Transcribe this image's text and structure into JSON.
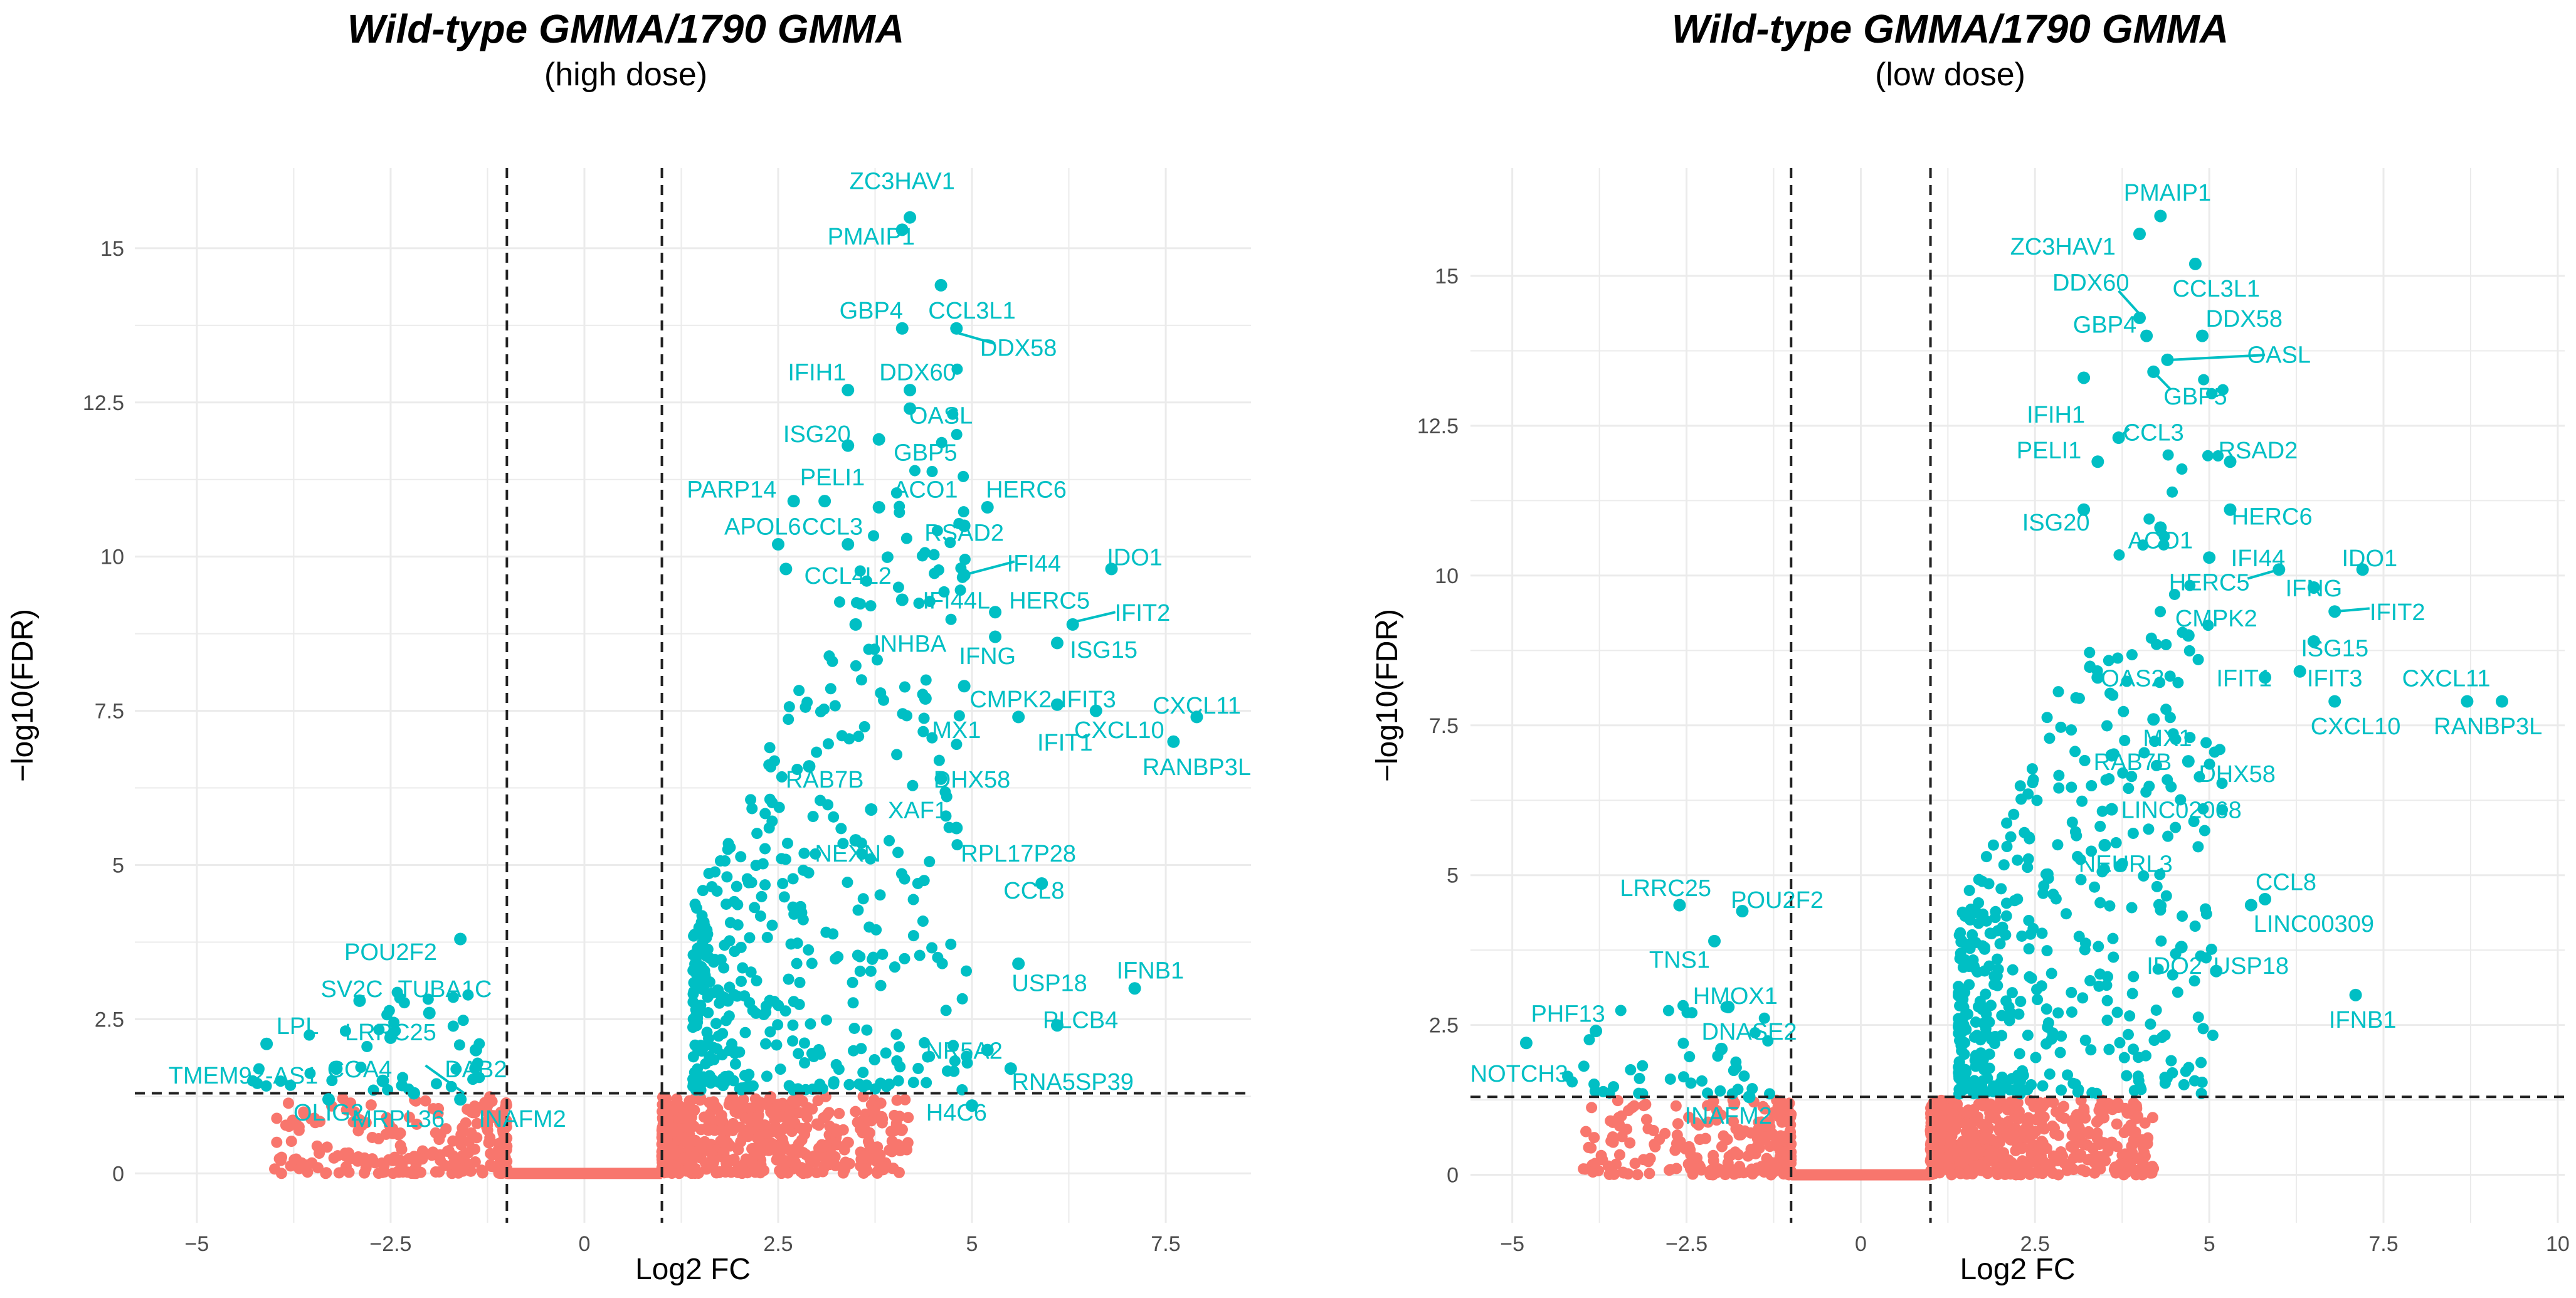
{
  "figure": {
    "background": "#ffffff",
    "up_color": "#00BFC4",
    "ns_color": "#F8766D",
    "grid_color": "#EBEBEB",
    "tick_label_color": "#4D4D4D"
  },
  "chart_data": [
    {
      "type": "scatter",
      "subtype": "volcano",
      "title": "Wild-type GMMA/1790 GMMA",
      "subtitle": "(high dose)",
      "xlabel": "Log2 FC",
      "ylabel": "−log10(FDR)",
      "xlim": [
        -5.8,
        8.6
      ],
      "ylim": [
        -0.8,
        16.3
      ],
      "xticks": [
        -5,
        -2.5,
        0,
        2.5,
        5,
        7.5
      ],
      "xtick_labels": [
        "−5",
        "−2.5",
        "0",
        "2.5",
        "5",
        "7.5"
      ],
      "yticks": [
        0,
        2.5,
        5,
        7.5,
        10,
        12.5,
        15
      ],
      "ytick_labels": [
        "0",
        "2.5",
        "5",
        "7.5",
        "10",
        "12.5",
        "15"
      ],
      "fc_threshold": [
        -1,
        1
      ],
      "fdr_threshold": 1.3,
      "labeled_points": [
        {
          "gene": "ZC3HAV1",
          "x": 4.2,
          "y": 15.5,
          "lx": 4.1,
          "ly": 16.1
        },
        {
          "gene": "PMAIP1",
          "x": 4.1,
          "y": 15.3,
          "lx": 3.7,
          "ly": 15.2
        },
        {
          "gene": "GBP4",
          "x": 4.1,
          "y": 13.7,
          "lx": 3.7,
          "ly": 14.0
        },
        {
          "gene": "CCL3L1",
          "x": 4.6,
          "y": 14.4,
          "lx": 5.0,
          "ly": 14.0
        },
        {
          "gene": "DDX58",
          "x": 4.8,
          "y": 13.7,
          "lx": 5.6,
          "ly": 13.4
        },
        {
          "gene": "IFIH1",
          "x": 3.4,
          "y": 12.7,
          "lx": 3.0,
          "ly": 13.0
        },
        {
          "gene": "DDX60",
          "x": 4.2,
          "y": 12.7,
          "lx": 4.3,
          "ly": 13.0
        },
        {
          "gene": "OASL",
          "x": 4.2,
          "y": 12.4,
          "lx": 4.6,
          "ly": 12.3
        },
        {
          "gene": "ISG20",
          "x": 3.4,
          "y": 11.8,
          "lx": 3.0,
          "ly": 12.0
        },
        {
          "gene": "GBP5",
          "x": 3.8,
          "y": 11.9,
          "lx": 4.4,
          "ly": 11.7
        },
        {
          "gene": "PARP14",
          "x": 2.7,
          "y": 10.9,
          "lx": 1.9,
          "ly": 11.1
        },
        {
          "gene": "PELI1",
          "x": 3.1,
          "y": 10.9,
          "lx": 3.2,
          "ly": 11.3
        },
        {
          "gene": "ACO1",
          "x": 3.8,
          "y": 10.8,
          "lx": 4.4,
          "ly": 11.1
        },
        {
          "gene": "HERC6",
          "x": 5.2,
          "y": 10.8,
          "lx": 5.7,
          "ly": 11.1
        },
        {
          "gene": "APOL6",
          "x": 2.5,
          "y": 10.2,
          "lx": 2.3,
          "ly": 10.5
        },
        {
          "gene": "CCL3",
          "x": 3.4,
          "y": 10.2,
          "lx": 3.2,
          "ly": 10.5
        },
        {
          "gene": "RSAD2",
          "x": 4.9,
          "y": 10.5,
          "lx": 4.9,
          "ly": 10.4
        },
        {
          "gene": "CCL4L2",
          "x": 2.6,
          "y": 9.8,
          "lx": 3.4,
          "ly": 9.7
        },
        {
          "gene": "IFI44",
          "x": 4.9,
          "y": 9.7,
          "lx": 5.8,
          "ly": 9.9
        },
        {
          "gene": "IDO1",
          "x": 6.8,
          "y": 9.8,
          "lx": 7.1,
          "ly": 10.0
        },
        {
          "gene": "IFI44L",
          "x": 4.1,
          "y": 9.3,
          "lx": 4.8,
          "ly": 9.3
        },
        {
          "gene": "HERC5",
          "x": 5.3,
          "y": 9.1,
          "lx": 6.0,
          "ly": 9.3
        },
        {
          "gene": "IFIT2",
          "x": 6.3,
          "y": 8.9,
          "lx": 7.2,
          "ly": 9.1
        },
        {
          "gene": "INHBA",
          "x": 3.5,
          "y": 8.9,
          "lx": 4.2,
          "ly": 8.6
        },
        {
          "gene": "IFNG",
          "x": 5.3,
          "y": 8.7,
          "lx": 5.2,
          "ly": 8.4
        },
        {
          "gene": "ISG15",
          "x": 6.1,
          "y": 8.6,
          "lx": 6.7,
          "ly": 8.5
        },
        {
          "gene": "CMPK2",
          "x": 4.9,
          "y": 7.9,
          "lx": 5.5,
          "ly": 7.7
        },
        {
          "gene": "IFIT3",
          "x": 6.1,
          "y": 7.6,
          "lx": 6.5,
          "ly": 7.7
        },
        {
          "gene": "CXCL11",
          "x": 7.9,
          "y": 7.4,
          "lx": 7.9,
          "ly": 7.6
        },
        {
          "gene": "MX1",
          "x": 4.4,
          "y": 7.7,
          "lx": 4.8,
          "ly": 7.2
        },
        {
          "gene": "IFIT1",
          "x": 5.6,
          "y": 7.4,
          "lx": 6.2,
          "ly": 7.0
        },
        {
          "gene": "CXCL10",
          "x": 6.6,
          "y": 7.5,
          "lx": 6.9,
          "ly": 7.2
        },
        {
          "gene": "RANBP3L",
          "x": 7.6,
          "y": 7.0,
          "lx": 7.9,
          "ly": 6.6
        },
        {
          "gene": "RAB7B",
          "x": 2.9,
          "y": 6.6,
          "lx": 3.1,
          "ly": 6.4
        },
        {
          "gene": "DHX58",
          "x": 4.6,
          "y": 6.4,
          "lx": 5.0,
          "ly": 6.4
        },
        {
          "gene": "XAF1",
          "x": 3.7,
          "y": 5.9,
          "lx": 4.3,
          "ly": 5.9
        },
        {
          "gene": "NEXN",
          "x": 3.5,
          "y": 5.4,
          "lx": 3.4,
          "ly": 5.2
        },
        {
          "gene": "RPL17P28",
          "x": 4.8,
          "y": 5.6,
          "lx": 5.6,
          "ly": 5.2
        },
        {
          "gene": "CCL8",
          "x": 5.9,
          "y": 4.7,
          "lx": 5.8,
          "ly": 4.6
        },
        {
          "gene": "IFNB1",
          "x": 7.1,
          "y": 3.0,
          "lx": 7.3,
          "ly": 3.3
        },
        {
          "gene": "USP18",
          "x": 5.6,
          "y": 3.4,
          "lx": 6.0,
          "ly": 3.1
        },
        {
          "gene": "PLCB4",
          "x": 6.1,
          "y": 2.4,
          "lx": 6.4,
          "ly": 2.5
        },
        {
          "gene": "NR5A2",
          "x": 5.2,
          "y": 2.0,
          "lx": 4.9,
          "ly": 2.0
        },
        {
          "gene": "RNA5SP39",
          "x": 5.5,
          "y": 1.7,
          "lx": 6.3,
          "ly": 1.5
        },
        {
          "gene": "H4C6",
          "x": 5.0,
          "y": 1.1,
          "lx": 4.8,
          "ly": 1.0
        },
        {
          "gene": "POU2F2",
          "x": -1.6,
          "y": 3.8,
          "lx": -2.5,
          "ly": 3.6
        },
        {
          "gene": "SV2C",
          "x": -2.9,
          "y": 2.8,
          "lx": -3.0,
          "ly": 3.0
        },
        {
          "gene": "TUBA1C",
          "x": -2.0,
          "y": 2.6,
          "lx": -1.8,
          "ly": 3.0
        },
        {
          "gene": "LPL",
          "x": -4.1,
          "y": 2.1,
          "lx": -3.7,
          "ly": 2.4
        },
        {
          "gene": "LRRC25",
          "x": -2.5,
          "y": 2.2,
          "lx": -2.5,
          "ly": 2.3
        },
        {
          "gene": "TMEM92-AS1",
          "x": -3.2,
          "y": 1.7,
          "lx": -4.4,
          "ly": 1.6
        },
        {
          "gene": "COA4",
          "x": -2.6,
          "y": 1.5,
          "lx": -2.9,
          "ly": 1.7
        },
        {
          "gene": "DAB2",
          "x": -1.4,
          "y": 2.0,
          "lx": -1.4,
          "ly": 1.7
        },
        {
          "gene": "OLIG2",
          "x": -3.3,
          "y": 1.2,
          "lx": -3.3,
          "ly": 1.0
        },
        {
          "gene": "MRPL36",
          "x": -2.2,
          "y": 1.3,
          "lx": -2.4,
          "ly": 0.9
        },
        {
          "gene": "INAFM2",
          "x": -1.6,
          "y": 1.2,
          "lx": -0.8,
          "ly": 0.9
        }
      ],
      "leader_lines": [
        {
          "x1": 4.75,
          "y1": 13.65,
          "x2": 5.3,
          "y2": 13.45
        },
        {
          "x1": 4.95,
          "y1": 9.72,
          "x2": 5.55,
          "y2": 9.92
        },
        {
          "x1": 6.35,
          "y1": 8.95,
          "x2": 6.85,
          "y2": 9.1
        },
        {
          "x1": -1.55,
          "y1": 1.3,
          "x2": -2.05,
          "y2": 1.75
        }
      ]
    },
    {
      "type": "scatter",
      "subtype": "volcano",
      "title": "Wild-type GMMA/1790 GMMA",
      "subtitle": "(low dose)",
      "xlabel": "Log2 FC",
      "ylabel": "−log10(FDR)",
      "xlim": [
        -5.6,
        10.1
      ],
      "ylim": [
        -0.8,
        16.8
      ],
      "xticks": [
        -5,
        -2.5,
        0,
        2.5,
        5,
        7.5,
        10
      ],
      "xtick_labels": [
        "−5",
        "−2.5",
        "0",
        "2.5",
        "5",
        "7.5",
        "10"
      ],
      "yticks": [
        0,
        2.5,
        5,
        7.5,
        10,
        12.5,
        15
      ],
      "ytick_labels": [
        "0",
        "2.5",
        "5",
        "7.5",
        "10",
        "12.5",
        "15"
      ],
      "fc_threshold": [
        -1,
        1
      ],
      "fdr_threshold": 1.3,
      "labeled_points": [
        {
          "gene": "PMAIP1",
          "x": 4.3,
          "y": 16.0,
          "lx": 4.4,
          "ly": 16.4
        },
        {
          "gene": "ZC3HAV1",
          "x": 4.0,
          "y": 15.7,
          "lx": 2.9,
          "ly": 15.5
        },
        {
          "gene": "DDX60",
          "x": 4.0,
          "y": 14.3,
          "lx": 3.3,
          "ly": 14.9
        },
        {
          "gene": "CCL3L1",
          "x": 4.8,
          "y": 15.2,
          "lx": 5.1,
          "ly": 14.8
        },
        {
          "gene": "GBP4",
          "x": 4.1,
          "y": 14.0,
          "lx": 3.5,
          "ly": 14.2
        },
        {
          "gene": "DDX58",
          "x": 4.9,
          "y": 14.0,
          "lx": 5.5,
          "ly": 14.3
        },
        {
          "gene": "OASL",
          "x": 4.4,
          "y": 13.6,
          "lx": 6.0,
          "ly": 13.7
        },
        {
          "gene": "GBP5",
          "x": 4.2,
          "y": 13.4,
          "lx": 4.8,
          "ly": 13.0
        },
        {
          "gene": "IFIH1",
          "x": 3.2,
          "y": 13.3,
          "lx": 2.8,
          "ly": 12.7
        },
        {
          "gene": "CCL3",
          "x": 3.7,
          "y": 12.3,
          "lx": 4.2,
          "ly": 12.4
        },
        {
          "gene": "PELI1",
          "x": 3.4,
          "y": 11.9,
          "lx": 2.7,
          "ly": 12.1
        },
        {
          "gene": "RSAD2",
          "x": 5.3,
          "y": 11.9,
          "lx": 5.7,
          "ly": 12.1
        },
        {
          "gene": "ISG20",
          "x": 3.2,
          "y": 11.1,
          "lx": 2.8,
          "ly": 10.9
        },
        {
          "gene": "HERC6",
          "x": 5.3,
          "y": 11.1,
          "lx": 5.9,
          "ly": 11.0
        },
        {
          "gene": "ACO1",
          "x": 4.3,
          "y": 10.8,
          "lx": 4.3,
          "ly": 10.6
        },
        {
          "gene": "IFI44",
          "x": 5.0,
          "y": 10.3,
          "lx": 5.7,
          "ly": 10.3
        },
        {
          "gene": "IDO1",
          "x": 7.2,
          "y": 10.1,
          "lx": 7.3,
          "ly": 10.3
        },
        {
          "gene": "HERC5",
          "x": 6.0,
          "y": 10.1,
          "lx": 5.0,
          "ly": 9.9
        },
        {
          "gene": "IFNG",
          "x": 6.5,
          "y": 9.8,
          "lx": 6.5,
          "ly": 9.8
        },
        {
          "gene": "IFIT2",
          "x": 6.8,
          "y": 9.4,
          "lx": 7.7,
          "ly": 9.4
        },
        {
          "gene": "CMPK2",
          "x": 4.7,
          "y": 9.0,
          "lx": 5.1,
          "ly": 9.3
        },
        {
          "gene": "ISG15",
          "x": 6.5,
          "y": 8.9,
          "lx": 6.8,
          "ly": 8.8
        },
        {
          "gene": "OAS2",
          "x": 3.4,
          "y": 8.3,
          "lx": 3.9,
          "ly": 8.3
        },
        {
          "gene": "IFIT1",
          "x": 5.8,
          "y": 8.3,
          "lx": 5.5,
          "ly": 8.3
        },
        {
          "gene": "IFIT3",
          "x": 6.3,
          "y": 8.4,
          "lx": 6.8,
          "ly": 8.3
        },
        {
          "gene": "CXCL11",
          "x": 9.2,
          "y": 7.9,
          "lx": 8.4,
          "ly": 8.3
        },
        {
          "gene": "MX1",
          "x": 4.2,
          "y": 7.6,
          "lx": 4.4,
          "ly": 7.3
        },
        {
          "gene": "CXCL10",
          "x": 6.8,
          "y": 7.9,
          "lx": 7.1,
          "ly": 7.5
        },
        {
          "gene": "RANBP3L",
          "x": 8.7,
          "y": 7.9,
          "lx": 9.0,
          "ly": 7.5
        },
        {
          "gene": "RAB7B",
          "x": 3.6,
          "y": 7.0,
          "lx": 3.9,
          "ly": 6.9
        },
        {
          "gene": "DHX58",
          "x": 4.7,
          "y": 6.9,
          "lx": 5.4,
          "ly": 6.7
        },
        {
          "gene": "LINC02068",
          "x": 3.6,
          "y": 6.1,
          "lx": 4.6,
          "ly": 6.1
        },
        {
          "gene": "NEURL3",
          "x": 3.5,
          "y": 5.5,
          "lx": 3.8,
          "ly": 5.2
        },
        {
          "gene": "CCL8",
          "x": 5.8,
          "y": 4.6,
          "lx": 6.1,
          "ly": 4.9
        },
        {
          "gene": "LINC00309",
          "x": 5.6,
          "y": 4.5,
          "lx": 6.5,
          "ly": 4.2
        },
        {
          "gene": "IDO2",
          "x": 4.6,
          "y": 3.8,
          "lx": 4.5,
          "ly": 3.5
        },
        {
          "gene": "USP18",
          "x": 5.1,
          "y": 3.4,
          "lx": 5.6,
          "ly": 3.5
        },
        {
          "gene": "IFNB1",
          "x": 7.1,
          "y": 3.0,
          "lx": 7.2,
          "ly": 2.6
        },
        {
          "gene": "LRRC25",
          "x": -2.6,
          "y": 4.5,
          "lx": -2.8,
          "ly": 4.8
        },
        {
          "gene": "POU2F2",
          "x": -1.7,
          "y": 4.4,
          "lx": -1.2,
          "ly": 4.6
        },
        {
          "gene": "TNS1",
          "x": -2.1,
          "y": 3.9,
          "lx": -2.6,
          "ly": 3.6
        },
        {
          "gene": "HMOX1",
          "x": -1.9,
          "y": 2.8,
          "lx": -1.8,
          "ly": 3.0
        },
        {
          "gene": "PHF13",
          "x": -3.8,
          "y": 2.4,
          "lx": -4.2,
          "ly": 2.7
        },
        {
          "gene": "DNASE2",
          "x": -2.0,
          "y": 2.1,
          "lx": -1.6,
          "ly": 2.4
        },
        {
          "gene": "NOTCH3",
          "x": -4.8,
          "y": 2.2,
          "lx": -4.9,
          "ly": 1.7
        },
        {
          "gene": "INAFM2",
          "x": -1.6,
          "y": 1.3,
          "lx": -1.9,
          "ly": 1.0
        }
      ],
      "leader_lines": [
        {
          "x1": 4.05,
          "y1": 14.3,
          "x2": 3.7,
          "y2": 14.75
        },
        {
          "x1": 4.45,
          "y1": 13.6,
          "x2": 5.8,
          "y2": 13.68
        },
        {
          "x1": 4.2,
          "y1": 13.4,
          "x2": 4.45,
          "y2": 13.1
        },
        {
          "x1": 3.7,
          "y1": 12.3,
          "x2": 3.85,
          "y2": 12.45
        },
        {
          "x1": 6.0,
          "y1": 10.1,
          "x2": 5.55,
          "y2": 9.95
        },
        {
          "x1": 6.8,
          "y1": 9.4,
          "x2": 7.3,
          "y2": 9.45
        }
      ]
    }
  ]
}
